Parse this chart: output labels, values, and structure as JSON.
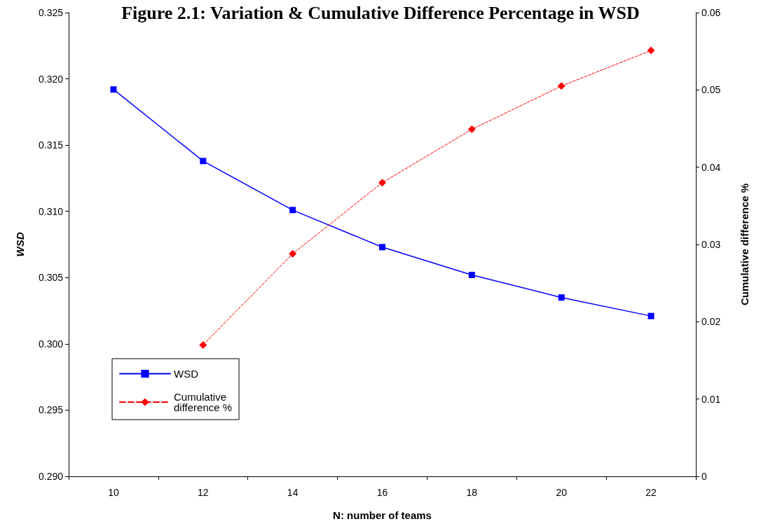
{
  "chart_data": {
    "type": "line",
    "title": "Figure 2.1: Variation & Cumulative Difference Percentage in WSD",
    "xlabel": "N: number of teams",
    "ylabel": "WSD",
    "y2label": "Cumulative difference %",
    "categories": [
      "10",
      "12",
      "14",
      "16",
      "18",
      "20",
      "22"
    ],
    "series": [
      {
        "name": "WSD",
        "color": "#0000ff",
        "marker": "square",
        "line_style": "solid",
        "values": [
          0.3192,
          0.3138,
          0.3101,
          0.3073,
          0.3052,
          0.3035,
          0.3021
        ]
      },
      {
        "name": "Cumulative difference %",
        "color": "#ff0000",
        "marker": "diamond",
        "line_style": "dashed",
        "axis": "y2",
        "values": [
          null,
          0.017,
          0.0288,
          0.038,
          0.0449,
          0.0505,
          0.0551
        ]
      }
    ],
    "ylim": [
      0.29,
      0.325
    ],
    "yticks": [
      {
        "value": 0.29,
        "label": "0.290"
      },
      {
        "value": 0.295,
        "label": "0.295"
      },
      {
        "value": 0.3,
        "label": "0.300"
      },
      {
        "value": 0.305,
        "label": "0.305"
      },
      {
        "value": 0.31,
        "label": "0.310"
      },
      {
        "value": 0.315,
        "label": "0.315"
      },
      {
        "value": 0.32,
        "label": "0.320"
      },
      {
        "value": 0.325,
        "label": "0.325"
      }
    ],
    "y2lim": [
      0,
      0.06
    ],
    "y2ticks": [
      0,
      0.01,
      0.02,
      0.03,
      0.04,
      0.05,
      0.06
    ],
    "grid": false,
    "legend": "bottom left"
  }
}
